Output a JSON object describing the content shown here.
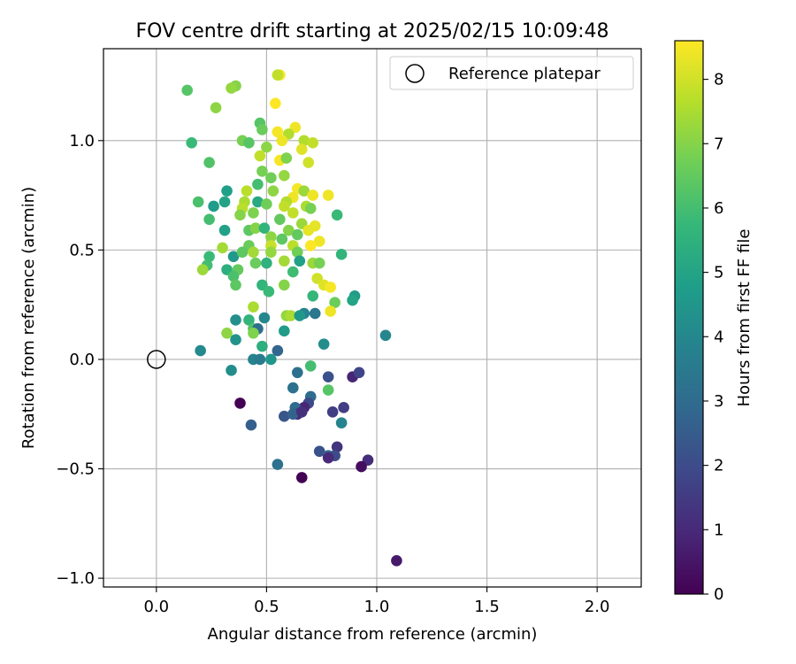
{
  "chart_data": {
    "type": "scatter",
    "title": "FOV centre drift starting at 2025/02/15 10:09:48",
    "xlabel": "Angular distance from reference (arcmin)",
    "ylabel": "Rotation from reference (arcmin)",
    "xlim": [
      -0.24,
      2.2
    ],
    "ylim": [
      -1.04,
      1.42
    ],
    "xticks": [
      0.0,
      0.5,
      1.0,
      1.5,
      2.0
    ],
    "xtick_labels": [
      "0.0",
      "0.5",
      "1.0",
      "1.5",
      "2.0"
    ],
    "yticks": [
      -1.0,
      -0.5,
      0.0,
      0.5,
      1.0
    ],
    "ytick_labels": [
      "−1.0",
      "−0.5",
      "0.0",
      "0.5",
      "1.0"
    ],
    "grid": true,
    "legend": {
      "position": "top-right",
      "entries": [
        "Reference platepar"
      ]
    },
    "reference_point": {
      "x": 0.0,
      "y": 0.0
    },
    "colorbar": {
      "label": "Hours from first FF file",
      "min": 0,
      "max": 8.6,
      "ticks": [
        0,
        1,
        2,
        3,
        4,
        5,
        6,
        7,
        8
      ],
      "tick_labels": [
        "0",
        "1",
        "2",
        "3",
        "4",
        "5",
        "6",
        "7",
        "8"
      ],
      "colormap": "viridis",
      "colormap_stops": [
        "#440154",
        "#482878",
        "#3e4989",
        "#31688e",
        "#26828e",
        "#1f9e89",
        "#35b779",
        "#6ece58",
        "#b5de2b",
        "#fde725"
      ]
    },
    "series": [
      {
        "points": [
          {
            "x": 0.56,
            "y": 1.3,
            "c": 8.5
          },
          {
            "x": 0.55,
            "y": 1.3,
            "c": 7.8
          },
          {
            "x": 0.14,
            "y": 1.23,
            "c": 6.3
          },
          {
            "x": 0.36,
            "y": 1.25,
            "c": 7.0
          },
          {
            "x": 0.34,
            "y": 1.24,
            "c": 7.2
          },
          {
            "x": 0.54,
            "y": 1.17,
            "c": 8.6
          },
          {
            "x": 0.27,
            "y": 1.15,
            "c": 7.1
          },
          {
            "x": 0.47,
            "y": 1.08,
            "c": 6.3
          },
          {
            "x": 0.63,
            "y": 1.06,
            "c": 8.4
          },
          {
            "x": 0.48,
            "y": 1.05,
            "c": 6.6
          },
          {
            "x": 0.55,
            "y": 1.04,
            "c": 8.5
          },
          {
            "x": 0.6,
            "y": 1.03,
            "c": 7.6
          },
          {
            "x": 0.57,
            "y": 1.0,
            "c": 8.4
          },
          {
            "x": 0.16,
            "y": 0.99,
            "c": 5.8
          },
          {
            "x": 0.39,
            "y": 1.0,
            "c": 6.8
          },
          {
            "x": 0.42,
            "y": 0.99,
            "c": 6.3
          },
          {
            "x": 0.67,
            "y": 1.0,
            "c": 7.6
          },
          {
            "x": 0.71,
            "y": 0.99,
            "c": 7.8
          },
          {
            "x": 0.5,
            "y": 0.97,
            "c": 7.1
          },
          {
            "x": 0.66,
            "y": 0.96,
            "c": 8.2
          },
          {
            "x": 0.47,
            "y": 0.93,
            "c": 7.8
          },
          {
            "x": 0.56,
            "y": 0.91,
            "c": 8.5
          },
          {
            "x": 0.69,
            "y": 0.9,
            "c": 8.0
          },
          {
            "x": 0.24,
            "y": 0.9,
            "c": 6.2
          },
          {
            "x": 0.59,
            "y": 0.92,
            "c": 6.9
          },
          {
            "x": 0.48,
            "y": 0.86,
            "c": 6.8
          },
          {
            "x": 0.52,
            "y": 0.83,
            "c": 6.7
          },
          {
            "x": 0.58,
            "y": 0.84,
            "c": 7.2
          },
          {
            "x": 0.46,
            "y": 0.8,
            "c": 6.0
          },
          {
            "x": 0.64,
            "y": 0.78,
            "c": 8.5
          },
          {
            "x": 0.32,
            "y": 0.77,
            "c": 4.8
          },
          {
            "x": 0.41,
            "y": 0.77,
            "c": 7.7
          },
          {
            "x": 0.53,
            "y": 0.77,
            "c": 7.1
          },
          {
            "x": 0.67,
            "y": 0.77,
            "c": 7.3
          },
          {
            "x": 0.71,
            "y": 0.75,
            "c": 8.4
          },
          {
            "x": 0.78,
            "y": 0.75,
            "c": 8.4
          },
          {
            "x": 0.62,
            "y": 0.74,
            "c": 8.4
          },
          {
            "x": 0.59,
            "y": 0.72,
            "c": 7.6
          },
          {
            "x": 0.19,
            "y": 0.72,
            "c": 6.1
          },
          {
            "x": 0.31,
            "y": 0.72,
            "c": 5.0
          },
          {
            "x": 0.4,
            "y": 0.72,
            "c": 7.5
          },
          {
            "x": 0.46,
            "y": 0.72,
            "c": 5.2
          },
          {
            "x": 0.5,
            "y": 0.71,
            "c": 6.7
          },
          {
            "x": 0.58,
            "y": 0.7,
            "c": 7.8
          },
          {
            "x": 0.68,
            "y": 0.7,
            "c": 7.5
          },
          {
            "x": 0.7,
            "y": 0.69,
            "c": 6.8
          },
          {
            "x": 0.26,
            "y": 0.7,
            "c": 4.7
          },
          {
            "x": 0.39,
            "y": 0.69,
            "c": 7.7
          },
          {
            "x": 0.44,
            "y": 0.67,
            "c": 6.9
          },
          {
            "x": 0.38,
            "y": 0.66,
            "c": 7.0
          },
          {
            "x": 0.62,
            "y": 0.67,
            "c": 7.8
          },
          {
            "x": 0.82,
            "y": 0.66,
            "c": 5.8
          },
          {
            "x": 0.24,
            "y": 0.64,
            "c": 6.0
          },
          {
            "x": 0.56,
            "y": 0.64,
            "c": 6.5
          },
          {
            "x": 0.66,
            "y": 0.62,
            "c": 7.3
          },
          {
            "x": 0.72,
            "y": 0.61,
            "c": 8.3
          },
          {
            "x": 0.31,
            "y": 0.59,
            "c": 4.9
          },
          {
            "x": 0.42,
            "y": 0.59,
            "c": 6.4
          },
          {
            "x": 0.45,
            "y": 0.6,
            "c": 7.0
          },
          {
            "x": 0.49,
            "y": 0.6,
            "c": 5.6
          },
          {
            "x": 0.6,
            "y": 0.59,
            "c": 7.0
          },
          {
            "x": 0.64,
            "y": 0.57,
            "c": 6.5
          },
          {
            "x": 0.69,
            "y": 0.59,
            "c": 8.3
          },
          {
            "x": 0.52,
            "y": 0.56,
            "c": 7.1
          },
          {
            "x": 0.57,
            "y": 0.55,
            "c": 6.4
          },
          {
            "x": 0.74,
            "y": 0.54,
            "c": 8.4
          },
          {
            "x": 0.3,
            "y": 0.51,
            "c": 7.4
          },
          {
            "x": 0.42,
            "y": 0.52,
            "c": 6.6
          },
          {
            "x": 0.52,
            "y": 0.52,
            "c": 7.9
          },
          {
            "x": 0.62,
            "y": 0.52,
            "c": 7.7
          },
          {
            "x": 0.7,
            "y": 0.52,
            "c": 8.6
          },
          {
            "x": 0.24,
            "y": 0.47,
            "c": 5.8
          },
          {
            "x": 0.35,
            "y": 0.47,
            "c": 4.6
          },
          {
            "x": 0.39,
            "y": 0.49,
            "c": 6.4
          },
          {
            "x": 0.44,
            "y": 0.49,
            "c": 7.4
          },
          {
            "x": 0.52,
            "y": 0.49,
            "c": 7.2
          },
          {
            "x": 0.64,
            "y": 0.49,
            "c": 6.7
          },
          {
            "x": 0.84,
            "y": 0.48,
            "c": 5.6
          },
          {
            "x": 0.23,
            "y": 0.43,
            "c": 6.0
          },
          {
            "x": 0.45,
            "y": 0.44,
            "c": 6.6
          },
          {
            "x": 0.5,
            "y": 0.44,
            "c": 5.5
          },
          {
            "x": 0.58,
            "y": 0.45,
            "c": 7.4
          },
          {
            "x": 0.65,
            "y": 0.45,
            "c": 4.9
          },
          {
            "x": 0.71,
            "y": 0.44,
            "c": 7.3
          },
          {
            "x": 0.74,
            "y": 0.44,
            "c": 6.8
          },
          {
            "x": 0.21,
            "y": 0.41,
            "c": 7.3
          },
          {
            "x": 0.32,
            "y": 0.41,
            "c": 5.4
          },
          {
            "x": 0.37,
            "y": 0.41,
            "c": 6.5
          },
          {
            "x": 0.62,
            "y": 0.4,
            "c": 5.9
          },
          {
            "x": 0.35,
            "y": 0.38,
            "c": 6.1
          },
          {
            "x": 0.73,
            "y": 0.37,
            "c": 8.0
          },
          {
            "x": 0.48,
            "y": 0.34,
            "c": 5.6
          },
          {
            "x": 0.58,
            "y": 0.34,
            "c": 7.0
          },
          {
            "x": 0.36,
            "y": 0.34,
            "c": 6.4
          },
          {
            "x": 0.76,
            "y": 0.34,
            "c": 8.2
          },
          {
            "x": 0.79,
            "y": 0.33,
            "c": 8.5
          },
          {
            "x": 0.51,
            "y": 0.31,
            "c": 5.8
          },
          {
            "x": 0.71,
            "y": 0.29,
            "c": 5.7
          },
          {
            "x": 0.9,
            "y": 0.29,
            "c": 4.7
          },
          {
            "x": 0.89,
            "y": 0.27,
            "c": 5.0
          },
          {
            "x": 0.81,
            "y": 0.26,
            "c": 6.6
          },
          {
            "x": 0.44,
            "y": 0.24,
            "c": 7.5
          },
          {
            "x": 0.79,
            "y": 0.22,
            "c": 8.4
          },
          {
            "x": 0.67,
            "y": 0.21,
            "c": 3.9
          },
          {
            "x": 0.72,
            "y": 0.21,
            "c": 3.4
          },
          {
            "x": 0.59,
            "y": 0.2,
            "c": 7.2
          },
          {
            "x": 0.61,
            "y": 0.2,
            "c": 7.5
          },
          {
            "x": 0.65,
            "y": 0.2,
            "c": 4.6
          },
          {
            "x": 0.49,
            "y": 0.19,
            "c": 4.0
          },
          {
            "x": 0.36,
            "y": 0.18,
            "c": 4.3
          },
          {
            "x": 0.42,
            "y": 0.18,
            "c": 5.6
          },
          {
            "x": 0.44,
            "y": 0.14,
            "c": 6.2
          },
          {
            "x": 0.46,
            "y": 0.14,
            "c": 3.1
          },
          {
            "x": 0.58,
            "y": 0.13,
            "c": 4.7
          },
          {
            "x": 0.32,
            "y": 0.12,
            "c": 7.1
          },
          {
            "x": 0.44,
            "y": 0.12,
            "c": 6.9
          },
          {
            "x": 1.04,
            "y": 0.11,
            "c": 4.0
          },
          {
            "x": 0.36,
            "y": 0.09,
            "c": 4.4
          },
          {
            "x": 0.76,
            "y": 0.07,
            "c": 4.2
          },
          {
            "x": 0.48,
            "y": 0.06,
            "c": 5.4
          },
          {
            "x": 0.2,
            "y": 0.04,
            "c": 4.1
          },
          {
            "x": 0.55,
            "y": 0.04,
            "c": 2.8
          },
          {
            "x": 0.44,
            "y": 0.0,
            "c": 3.9
          },
          {
            "x": 0.47,
            "y": 0.0,
            "c": 3.6
          },
          {
            "x": 0.52,
            "y": 0.0,
            "c": 4.5
          },
          {
            "x": 0.7,
            "y": -0.03,
            "c": 6.0
          },
          {
            "x": 0.34,
            "y": -0.05,
            "c": 4.2
          },
          {
            "x": 0.64,
            "y": -0.06,
            "c": 3.2
          },
          {
            "x": 0.78,
            "y": -0.08,
            "c": 2.2
          },
          {
            "x": 0.89,
            "y": -0.08,
            "c": 0.9
          },
          {
            "x": 0.92,
            "y": -0.06,
            "c": 1.8
          },
          {
            "x": 0.62,
            "y": -0.13,
            "c": 3.2
          },
          {
            "x": 0.78,
            "y": -0.14,
            "c": 6.3
          },
          {
            "x": 0.7,
            "y": -0.17,
            "c": 3.0
          },
          {
            "x": 0.38,
            "y": -0.2,
            "c": 0.0
          },
          {
            "x": 0.69,
            "y": -0.2,
            "c": 1.9
          },
          {
            "x": 0.67,
            "y": -0.22,
            "c": 0.9
          },
          {
            "x": 0.63,
            "y": -0.22,
            "c": 3.0
          },
          {
            "x": 0.85,
            "y": -0.22,
            "c": 1.6
          },
          {
            "x": 0.64,
            "y": -0.25,
            "c": 1.0
          },
          {
            "x": 0.8,
            "y": -0.24,
            "c": 1.6
          },
          {
            "x": 0.58,
            "y": -0.26,
            "c": 2.3
          },
          {
            "x": 0.62,
            "y": -0.25,
            "c": 2.7
          },
          {
            "x": 0.66,
            "y": -0.24,
            "c": 1.2
          },
          {
            "x": 0.43,
            "y": -0.3,
            "c": 2.6
          },
          {
            "x": 0.84,
            "y": -0.29,
            "c": 3.9
          },
          {
            "x": 0.82,
            "y": -0.4,
            "c": 1.3
          },
          {
            "x": 0.74,
            "y": -0.42,
            "c": 2.2
          },
          {
            "x": 0.78,
            "y": -0.44,
            "c": 2.8
          },
          {
            "x": 0.81,
            "y": -0.44,
            "c": 2.0
          },
          {
            "x": 0.78,
            "y": -0.45,
            "c": 1.0
          },
          {
            "x": 0.96,
            "y": -0.46,
            "c": 1.1
          },
          {
            "x": 0.93,
            "y": -0.49,
            "c": 0.3
          },
          {
            "x": 0.55,
            "y": -0.48,
            "c": 3.2
          },
          {
            "x": 0.66,
            "y": -0.54,
            "c": 0.0
          },
          {
            "x": 1.09,
            "y": -0.92,
            "c": 0.6
          }
        ]
      }
    ]
  }
}
